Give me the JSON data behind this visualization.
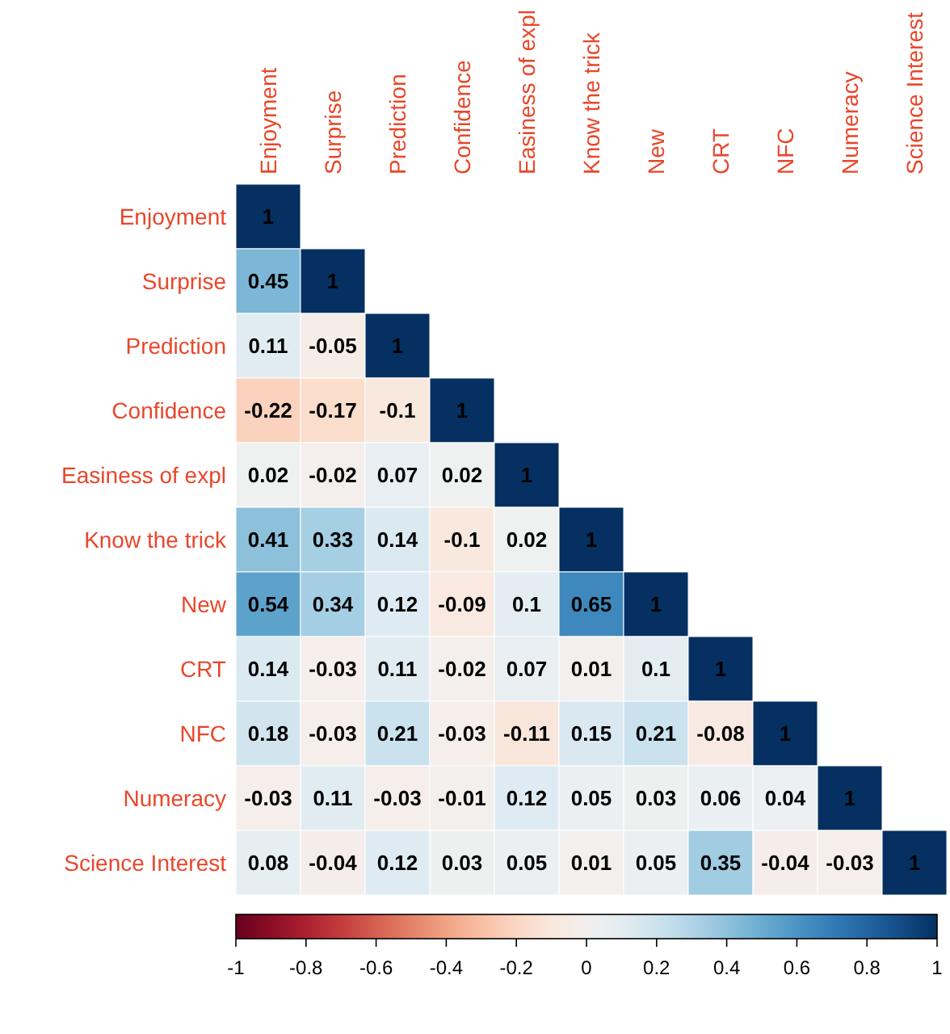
{
  "chart_data": {
    "type": "heatmap",
    "categories": [
      "Enjoyment",
      "Surprise",
      "Prediction",
      "Confidence",
      "Easiness of expl",
      "Know the trick",
      "New",
      "CRT",
      "NFC",
      "Numeracy",
      "Science Interest"
    ],
    "y_categories": [
      "Enjoyment",
      "Surprise",
      "Prediction",
      "Confidence",
      "Easiness of expl",
      "Know the trick",
      "New",
      "CRT",
      "NFC",
      "Numeracy",
      "Science Interest"
    ],
    "cells": [
      [
        1,
        null,
        null,
        null,
        null,
        null,
        null,
        null,
        null,
        null,
        null
      ],
      [
        0.45,
        1,
        null,
        null,
        null,
        null,
        null,
        null,
        null,
        null,
        null
      ],
      [
        0.11,
        -0.05,
        1,
        null,
        null,
        null,
        null,
        null,
        null,
        null,
        null
      ],
      [
        -0.22,
        -0.17,
        -0.1,
        1,
        null,
        null,
        null,
        null,
        null,
        null,
        null
      ],
      [
        0.02,
        -0.02,
        0.07,
        0.02,
        1,
        null,
        null,
        null,
        null,
        null,
        null
      ],
      [
        0.41,
        0.33,
        0.14,
        -0.1,
        0.02,
        1,
        null,
        null,
        null,
        null,
        null
      ],
      [
        0.54,
        0.34,
        0.12,
        -0.09,
        0.1,
        0.65,
        1,
        null,
        null,
        null,
        null
      ],
      [
        0.14,
        -0.03,
        0.11,
        -0.02,
        0.07,
        0.01,
        0.1,
        1,
        null,
        null,
        null
      ],
      [
        0.18,
        -0.03,
        0.21,
        -0.03,
        -0.11,
        0.15,
        0.21,
        -0.08,
        1,
        null,
        null
      ],
      [
        -0.03,
        0.11,
        -0.03,
        -0.01,
        0.12,
        0.05,
        0.03,
        0.06,
        0.04,
        1,
        null
      ],
      [
        0.08,
        -0.04,
        0.12,
        0.03,
        0.05,
        0.01,
        0.05,
        0.35,
        -0.04,
        -0.03,
        1
      ]
    ],
    "data_labels": true,
    "clim": [
      -1,
      1
    ],
    "cticks": [
      -1,
      -0.8,
      -0.6,
      -0.4,
      -0.2,
      0,
      0.2,
      0.4,
      0.6,
      0.8,
      1
    ]
  }
}
